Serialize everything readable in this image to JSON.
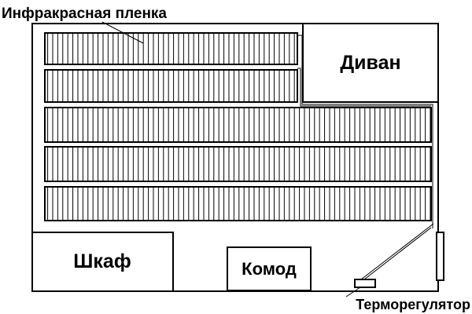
{
  "labels": {
    "film": "Инфракрасная пленка",
    "sofa": "Диван",
    "wardrobe": "Шкаф",
    "dresser": "Комод",
    "thermostat": "Терморегулятор"
  },
  "colors": {
    "line": "#000000",
    "background": "#ffffff"
  }
}
